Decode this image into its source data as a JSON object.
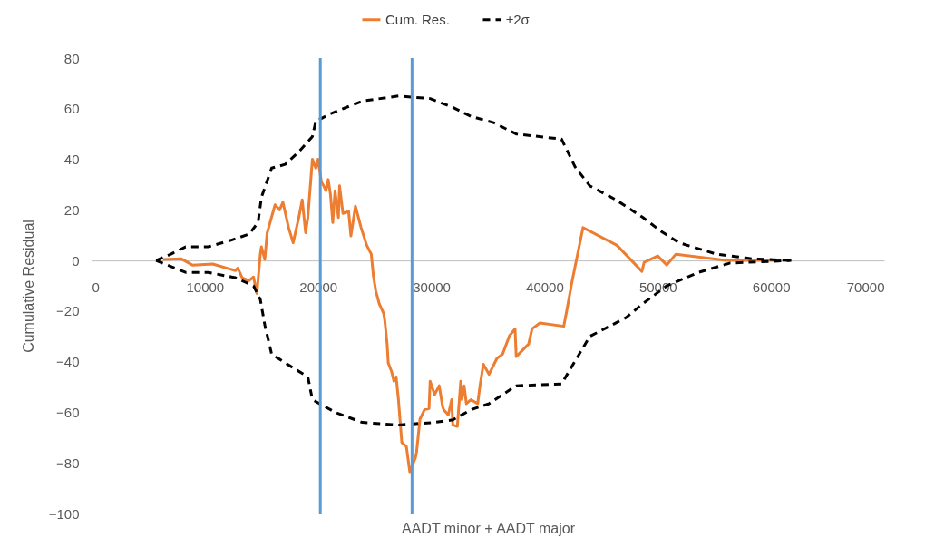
{
  "chart_data": {
    "type": "line",
    "xlabel": "AADT minor + AADT major",
    "ylabel": "Cumulative Residual",
    "xlim": [
      0,
      70000
    ],
    "xticks": [
      0,
      10000,
      20000,
      30000,
      40000,
      50000,
      60000,
      70000
    ],
    "ylim": [
      -100,
      80
    ],
    "yticks": [
      -100,
      -80,
      -60,
      -40,
      -20,
      0,
      20,
      40,
      60,
      80
    ],
    "grid": false,
    "legend": "top",
    "marker": "none",
    "series": [
      {
        "name": "Cum. Res.",
        "color": "#ed7d31",
        "line_style": "solid",
        "x": [
          6300,
          7900,
          8900,
          10700,
          12700,
          12900,
          13300,
          13900,
          14300,
          14600,
          14900,
          15000,
          15300,
          15500,
          16200,
          16600,
          16900,
          17400,
          17800,
          18300,
          18600,
          18900,
          19100,
          19500,
          19800,
          20000,
          20300,
          20500,
          20700,
          20900,
          21100,
          21300,
          21500,
          21800,
          21900,
          22200,
          22700,
          22900,
          23300,
          23800,
          24300,
          24700,
          24900,
          25100,
          25400,
          25800,
          25900,
          26100,
          26200,
          26500,
          26700,
          26900,
          27100,
          27400,
          27800,
          28100,
          28600,
          28700,
          29000,
          29400,
          29800,
          29900,
          30300,
          30700,
          31000,
          31100,
          31500,
          31800,
          31900,
          32300,
          32600,
          32700,
          32900,
          33100,
          33500,
          34100,
          34300,
          34600,
          35100,
          35800,
          36000,
          36300,
          36900,
          37400,
          37500,
          38600,
          38900,
          39600,
          41700,
          42000,
          42400,
          43400,
          46400,
          48600,
          48800,
          50000,
          50800,
          51600,
          56000,
          60800
        ],
        "values": [
          0.4,
          0.7,
          -1.8,
          -1.4,
          -4,
          -3,
          -6.8,
          -8,
          -6.5,
          -13,
          2.5,
          5.4,
          0.4,
          10.8,
          22,
          20,
          23,
          13,
          7,
          17,
          24,
          11,
          17,
          40,
          36.5,
          40,
          31,
          29.5,
          27.6,
          32,
          26,
          15,
          27.6,
          17,
          29.5,
          18.6,
          19.4,
          9.7,
          21.5,
          13,
          6,
          2.5,
          -6.5,
          -12,
          -17,
          -21,
          -24,
          -33,
          -40.5,
          -44,
          -47.7,
          -46,
          -55,
          -72,
          -73.5,
          -83.5,
          -78,
          -75.7,
          -62.7,
          -59,
          -58.5,
          -47.7,
          -53,
          -49.5,
          -57.7,
          -59,
          -61,
          -55,
          -65,
          -65.6,
          -47.7,
          -55,
          -49.5,
          -56.6,
          -55,
          -56.6,
          -49.5,
          -41,
          -45,
          -38.7,
          -38,
          -37,
          -29.8,
          -27,
          -38,
          -33,
          -27,
          -24.7,
          -26,
          -19,
          -9,
          13,
          6,
          -4.3,
          -0.7,
          1.8,
          -1.8,
          2.5,
          0,
          0
        ]
      },
      {
        "name": "±2σ",
        "color": "#000000",
        "line_style": "dashed",
        "x": [
          5700,
          7000,
          8300,
          10300,
          12300,
          13900,
          14700,
          15000,
          15900,
          17100,
          18300,
          19500,
          19800,
          21100,
          23900,
          27100,
          29900,
          31900,
          33500,
          35500,
          37500,
          41500,
          42700,
          44000,
          46300,
          48700,
          50300,
          51900,
          55200,
          58300,
          61800
        ],
        "values": [
          0,
          2.5,
          5.4,
          5.4,
          8,
          10.4,
          15,
          25,
          36.5,
          38,
          43,
          49,
          55,
          58,
          63,
          65,
          64,
          60.5,
          57,
          54.5,
          50,
          48,
          37,
          29.5,
          24,
          17,
          11.5,
          7,
          2.5,
          0.7,
          0
        ]
      },
      {
        "color": "#000000",
        "line_style": "dashed",
        "x": [
          5700,
          8300,
          10300,
          12700,
          14300,
          14900,
          15300,
          15900,
          17500,
          19100,
          19500,
          21500,
          23900,
          27100,
          30300,
          31900,
          33500,
          35100,
          37500,
          41500,
          42400,
          44000,
          47200,
          48700,
          50800,
          53600,
          56400,
          61800
        ],
        "values": [
          0,
          -4.7,
          -4.7,
          -6.8,
          -10,
          -15.4,
          -25.5,
          -37,
          -41.6,
          -46,
          -55,
          -60,
          -64,
          -65,
          -64,
          -63,
          -59,
          -56.6,
          -49.5,
          -48.8,
          -42,
          -30,
          -22.6,
          -17,
          -10,
          -4.7,
          -1,
          0
        ]
      }
    ],
    "ref_lines": [
      {
        "axis": "x",
        "value": 20200,
        "color": "#5b9bd5"
      },
      {
        "axis": "x",
        "value": 28300,
        "color": "#5b9bd5"
      }
    ]
  }
}
